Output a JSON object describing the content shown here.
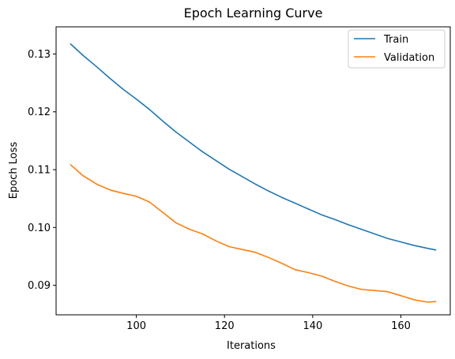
{
  "chart_data": {
    "type": "line",
    "title": "Epoch Learning Curve",
    "xlabel": "Iterations",
    "ylabel": "Epoch Loss",
    "xlim": [
      81.8,
      171.2
    ],
    "ylim": [
      0.0849,
      0.1347
    ],
    "xticks": [
      100,
      120,
      140,
      160
    ],
    "yticks": [
      0.09,
      0.1,
      0.11,
      0.12,
      0.13
    ],
    "xtick_labels": [
      "100",
      "120",
      "140",
      "160"
    ],
    "ytick_labels": [
      "0.09",
      "0.10",
      "0.11",
      "0.12",
      "0.13"
    ],
    "grid": false,
    "legend": "top-right",
    "series": [
      {
        "name": "Train",
        "color": "#1f77b4",
        "x": [
          85,
          88,
          91,
          94,
          97,
          100,
          103,
          106,
          109,
          112,
          115,
          118,
          121,
          124,
          127,
          130,
          133,
          136,
          139,
          142,
          145,
          148,
          151,
          154,
          157,
          160,
          163,
          166,
          168
        ],
        "y": [
          0.1318,
          0.1297,
          0.1278,
          0.1258,
          0.1239,
          0.1222,
          0.1204,
          0.1184,
          0.1165,
          0.1148,
          0.1131,
          0.1116,
          0.1101,
          0.1088,
          0.1075,
          0.1063,
          0.1052,
          0.1042,
          0.1032,
          0.1022,
          0.1014,
          0.1005,
          0.0997,
          0.0989,
          0.0981,
          0.0975,
          0.0969,
          0.0964,
          0.0961
        ]
      },
      {
        "name": "Validation",
        "color": "#ff7f0e",
        "x": [
          85,
          88,
          91,
          94,
          97,
          100,
          103,
          106,
          109,
          112,
          115,
          118,
          121,
          124,
          127,
          130,
          133,
          136,
          139,
          142,
          145,
          148,
          151,
          154,
          157,
          160,
          163,
          166,
          168
        ],
        "y": [
          0.1109,
          0.1089,
          0.1075,
          0.1065,
          0.1059,
          0.1054,
          0.1044,
          0.1026,
          0.1008,
          0.0997,
          0.0989,
          0.0977,
          0.0967,
          0.0962,
          0.0957,
          0.0948,
          0.0938,
          0.0927,
          0.0922,
          0.0916,
          0.0907,
          0.0899,
          0.0893,
          0.0891,
          0.0889,
          0.0882,
          0.0875,
          0.0871,
          0.0872
        ]
      }
    ]
  }
}
